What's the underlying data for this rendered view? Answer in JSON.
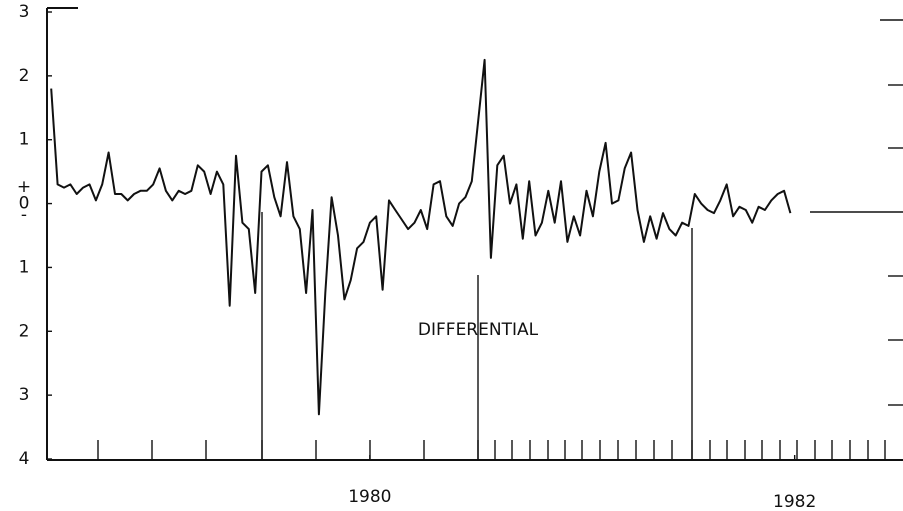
{
  "chart_data": {
    "type": "line",
    "annotations": [
      "DIFFERENTIAL",
      "+",
      "-"
    ],
    "x": [
      1978.5,
      1978.53,
      1978.56,
      1978.59,
      1978.62,
      1978.65,
      1978.68,
      1978.71,
      1978.74,
      1978.77,
      1978.8,
      1978.83,
      1978.86,
      1978.89,
      1978.92,
      1978.95,
      1978.98,
      1979.01,
      1979.04,
      1979.07,
      1979.1,
      1979.13,
      1979.16,
      1979.19,
      1979.22,
      1979.25,
      1979.28,
      1979.31,
      1979.34,
      1979.37,
      1979.4,
      1979.43,
      1979.46,
      1979.49,
      1979.52,
      1979.55,
      1979.58,
      1979.61,
      1979.64,
      1979.67,
      1979.7,
      1979.73,
      1979.76,
      1979.79,
      1979.82,
      1979.85,
      1979.88,
      1979.91,
      1979.94,
      1979.97,
      1980.0,
      1980.03,
      1980.06,
      1980.09,
      1980.12,
      1980.15,
      1980.18,
      1980.21,
      1980.24,
      1980.27,
      1980.3,
      1980.33,
      1980.36,
      1980.39,
      1980.42,
      1980.45,
      1980.48,
      1980.51,
      1980.54,
      1980.57,
      1980.6,
      1980.63,
      1980.66,
      1980.69,
      1980.72,
      1980.75,
      1980.78,
      1980.81,
      1980.84,
      1980.87,
      1980.9,
      1980.93,
      1980.96,
      1980.99,
      1981.02,
      1981.05,
      1981.08,
      1981.11,
      1981.14,
      1981.17,
      1981.2,
      1981.23,
      1981.26,
      1981.29,
      1981.32,
      1981.35,
      1981.38,
      1981.41,
      1981.44,
      1981.47,
      1981.5,
      1981.53,
      1981.56,
      1981.59,
      1981.62,
      1981.65,
      1981.68,
      1981.71,
      1981.74,
      1981.77,
      1981.8,
      1981.83,
      1981.86,
      1981.89,
      1981.92,
      1981.95,
      1981.98
    ],
    "series": [
      {
        "color": "#111111",
        "values": [
          1.8,
          0.3,
          0.25,
          0.3,
          0.15,
          0.25,
          0.3,
          0.05,
          0.3,
          0.8,
          0.15,
          0.15,
          0.05,
          0.15,
          0.2,
          0.2,
          0.3,
          0.55,
          0.2,
          0.05,
          0.2,
          0.15,
          0.2,
          0.6,
          0.5,
          0.15,
          0.5,
          0.3,
          -1.6,
          0.75,
          -0.3,
          -0.4,
          -1.4,
          0.5,
          0.6,
          0.1,
          -0.2,
          0.65,
          -0.2,
          -0.4,
          -1.4,
          -0.1,
          -3.3,
          -1.4,
          0.1,
          -0.5,
          -1.5,
          -1.2,
          -0.7,
          -0.6,
          -0.3,
          -0.2,
          -1.35,
          0.05,
          -0.1,
          -0.25,
          -0.4,
          -0.3,
          -0.1,
          -0.4,
          0.3,
          0.35,
          -0.2,
          -0.35,
          0.0,
          0.1,
          0.35,
          1.3,
          2.25,
          -0.85,
          0.6,
          0.75,
          0.0,
          0.3,
          -0.55,
          0.35,
          -0.5,
          -0.3,
          0.2,
          -0.3,
          0.35,
          -0.6,
          -0.2,
          -0.5,
          0.2,
          -0.2,
          0.5,
          0.95,
          0.0,
          0.05,
          0.55,
          0.8,
          -0.1,
          -0.6,
          -0.2,
          -0.55,
          -0.15,
          -0.4,
          -0.5,
          -0.3,
          -0.35,
          0.15,
          0.0,
          -0.1,
          -0.15,
          0.05,
          0.3,
          -0.2,
          -0.05,
          -0.1,
          -0.3,
          -0.05,
          -0.1,
          0.05,
          0.15,
          0.2,
          -0.15
        ]
      }
    ],
    "xlim": [
      1978.48,
      1982.51
    ],
    "xticks": [
      1980,
      1982
    ],
    "ylim": [
      -4,
      3
    ],
    "yticks": [
      3,
      2,
      1,
      0,
      {
        "value": -1,
        "label": "1"
      },
      {
        "value": -2,
        "label": "2"
      },
      {
        "value": -3,
        "label": "3"
      },
      {
        "value": -4,
        "label": "4"
      }
    ]
  }
}
